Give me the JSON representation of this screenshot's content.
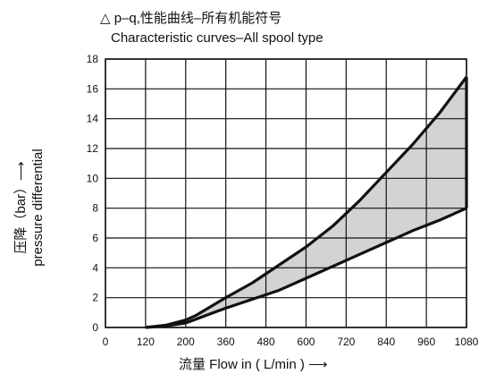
{
  "chart_data": {
    "type": "area",
    "title": "△ p–q,性能曲线–所有机能符号",
    "subtitle": "Characteristic curves–All spool type",
    "xlabel": "流量 Flow in ( L/min ) ⟶",
    "ylabel_cn": "压降（bar）⟶",
    "ylabel_en": "pressure differential",
    "x_ticks": [
      "0",
      "120",
      "200",
      "360",
      "480",
      "600",
      "720",
      "840",
      "960",
      "1080"
    ],
    "y_ticks": [
      "0",
      "2",
      "4",
      "6",
      "8",
      "10",
      "12",
      "14",
      "16",
      "18"
    ],
    "ylim": [
      0,
      18
    ],
    "grid": true,
    "colors": {
      "fill": "#d3d3d3",
      "line": "#111111",
      "grid": "#111111"
    },
    "series": [
      {
        "x": [
          120,
          160,
          200,
          240,
          280,
          360,
          440,
          520,
          600,
          680,
          760,
          840,
          920,
          1000,
          1080
        ],
        "y": [
          0,
          0.15,
          0.5,
          0.8,
          1.2,
          2.0,
          3.0,
          4.2,
          5.4,
          6.8,
          8.5,
          10.4,
          12.3,
          14.4,
          16.8
        ]
      },
      {
        "x": [
          120,
          160,
          200,
          240,
          280,
          360,
          440,
          520,
          600,
          680,
          760,
          840,
          920,
          1000,
          1080
        ],
        "y": [
          0,
          0.1,
          0.3,
          0.55,
          0.8,
          1.3,
          1.9,
          2.5,
          3.3,
          4.1,
          4.9,
          5.7,
          6.5,
          7.2,
          8.0
        ]
      }
    ]
  }
}
